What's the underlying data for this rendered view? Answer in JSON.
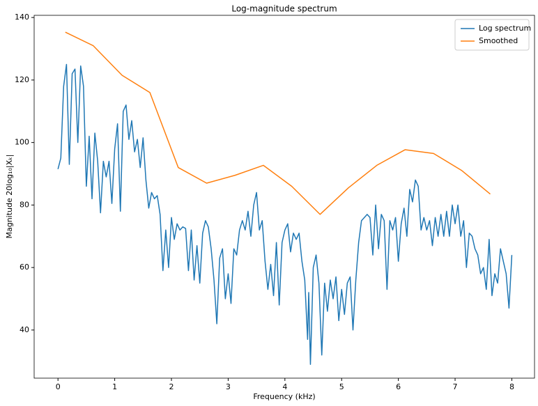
{
  "chart_data": {
    "type": "line",
    "title": "Log-magnitude spectrum",
    "xlabel": "Frequency (kHz)",
    "ylabel": "Magnitude 20log₁₀|Xₖ|",
    "xlim": [
      -0.42,
      8.4
    ],
    "ylim": [
      24.6,
      140.7
    ],
    "xticks": [
      0,
      1,
      2,
      3,
      4,
      5,
      6,
      7,
      8
    ],
    "yticks": [
      40,
      60,
      80,
      100,
      120,
      140
    ],
    "grid": false,
    "legend": "upper right",
    "series": [
      {
        "name": "Log spectrum",
        "color": "#1f77b4",
        "x": [
          0,
          0.05,
          0.1,
          0.15,
          0.2,
          0.25,
          0.3,
          0.35,
          0.4,
          0.45,
          0.5,
          0.55,
          0.6,
          0.65,
          0.7,
          0.75,
          0.8,
          0.85,
          0.9,
          0.95,
          1.0,
          1.05,
          1.1,
          1.15,
          1.2,
          1.25,
          1.3,
          1.35,
          1.4,
          1.45,
          1.5,
          1.55,
          1.6,
          1.65,
          1.7,
          1.75,
          1.8,
          1.85,
          1.9,
          1.95,
          2.0,
          2.05,
          2.1,
          2.15,
          2.2,
          2.25,
          2.3,
          2.35,
          2.4,
          2.45,
          2.5,
          2.55,
          2.6,
          2.65,
          2.7,
          2.75,
          2.8,
          2.85,
          2.9,
          2.95,
          3.0,
          3.05,
          3.1,
          3.15,
          3.2,
          3.25,
          3.3,
          3.35,
          3.4,
          3.45,
          3.5,
          3.55,
          3.6,
          3.65,
          3.7,
          3.75,
          3.8,
          3.85,
          3.9,
          3.95,
          4.0,
          4.05,
          4.1,
          4.15,
          4.2,
          4.25,
          4.3,
          4.35,
          4.4,
          4.42,
          4.45,
          4.5,
          4.55,
          4.6,
          4.65,
          4.7,
          4.75,
          4.8,
          4.85,
          4.9,
          4.95,
          5.0,
          5.05,
          5.1,
          5.15,
          5.2,
          5.25,
          5.3,
          5.35,
          5.4,
          5.45,
          5.5,
          5.55,
          5.6,
          5.65,
          5.7,
          5.75,
          5.8,
          5.85,
          5.9,
          5.95,
          6.0,
          6.05,
          6.1,
          6.15,
          6.2,
          6.25,
          6.3,
          6.35,
          6.4,
          6.45,
          6.5,
          6.55,
          6.6,
          6.65,
          6.7,
          6.75,
          6.8,
          6.85,
          6.9,
          6.95,
          7.0,
          7.05,
          7.1,
          7.15,
          7.2,
          7.25,
          7.3,
          7.35,
          7.4,
          7.45,
          7.5,
          7.55,
          7.6,
          7.65,
          7.7,
          7.75,
          7.8,
          7.85,
          7.9,
          7.95,
          8.0
        ],
        "values": [
          91.5,
          95,
          118,
          125,
          93,
          122,
          123.5,
          100,
          124.5,
          118,
          86,
          102,
          82,
          103,
          94,
          77.5,
          94,
          89,
          94,
          80.5,
          98,
          106,
          78,
          110,
          112,
          101,
          107,
          97,
          101,
          92,
          101.5,
          88,
          79,
          84,
          82,
          83,
          77,
          59,
          72,
          60,
          76,
          69,
          74,
          72,
          73,
          72.5,
          59,
          72,
          56,
          67,
          55,
          71,
          75,
          73,
          66,
          56,
          42,
          63,
          66,
          50,
          58,
          48.5,
          66,
          64,
          72,
          75,
          72,
          78,
          70,
          80,
          84,
          72,
          75,
          62,
          53,
          61,
          51,
          68,
          48,
          68,
          72,
          74,
          65,
          71,
          69,
          71,
          62,
          56,
          37,
          52,
          29,
          60,
          64,
          55,
          32,
          55,
          46,
          56,
          50,
          57,
          43,
          53,
          45,
          55,
          57,
          40,
          56,
          68,
          75,
          76,
          77,
          76,
          64,
          80,
          66,
          77,
          75,
          53,
          75,
          72,
          76,
          62,
          74,
          79,
          70,
          85,
          81,
          88,
          86,
          72,
          76,
          72,
          75,
          67,
          76,
          70,
          77,
          70,
          78,
          70,
          80,
          74,
          80,
          70,
          75,
          60,
          71,
          70,
          66,
          64,
          58,
          60,
          53,
          69,
          51,
          58,
          55,
          66,
          62,
          58,
          47,
          64
        ]
      },
      {
        "name": "Smoothed",
        "color": "#ff7f0e",
        "x": [
          0.13,
          0.62,
          1.13,
          1.62,
          2.12,
          2.62,
          3.12,
          3.62,
          4.12,
          4.62,
          5.12,
          5.62,
          6.12,
          6.62,
          7.12,
          7.62
        ],
        "values": [
          135.3,
          131,
          121.5,
          116,
          92,
          87,
          89.5,
          92.7,
          86,
          77,
          85.5,
          92.7,
          97.7,
          96.5,
          91,
          83.5
        ]
      }
    ]
  }
}
